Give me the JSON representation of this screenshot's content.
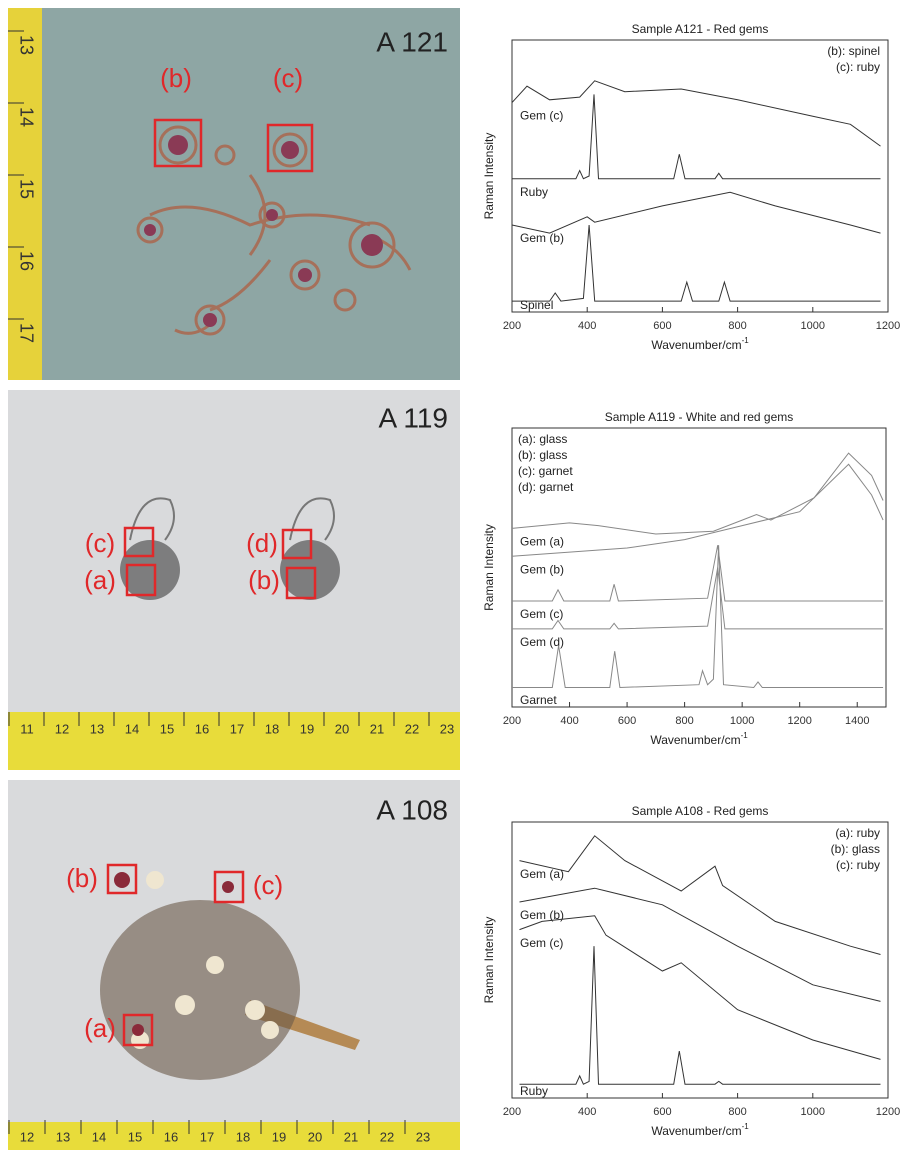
{
  "chart_data": [
    {
      "type": "line",
      "title": "Sample A121 - Red gems",
      "xlabel": "Wavenumber/cm",
      "xlabel_sup": "-1",
      "ylabel": "Raman Intensity",
      "xlim": [
        200,
        1200
      ],
      "xticks": [
        200,
        400,
        600,
        800,
        1000,
        1200
      ],
      "ylim": [
        0,
        100
      ],
      "legend": [
        "(b): spinel",
        "(c): ruby"
      ],
      "legend_loc": "upper right",
      "series": [
        {
          "name": "Gem (c)",
          "color": "#333333",
          "x": [
            200,
            240,
            300,
            380,
            420,
            500,
            650,
            800,
            1000,
            1100,
            1180
          ],
          "values": [
            77,
            83,
            78,
            79,
            85,
            81,
            82,
            78,
            72,
            69,
            61
          ]
        },
        {
          "name": "Ruby",
          "color": "#333333",
          "x": [
            200,
            370,
            380,
            390,
            405,
            418,
            430,
            630,
            645,
            660,
            740,
            750,
            760,
            1180
          ],
          "values": [
            49,
            49,
            52,
            49,
            50,
            80,
            49,
            49,
            58,
            49,
            49,
            51,
            49,
            49
          ]
        },
        {
          "name": "Gem (b)",
          "color": "#333333",
          "x": [
            200,
            300,
            400,
            420,
            600,
            780,
            900,
            1100,
            1180
          ],
          "values": [
            32,
            29,
            35,
            33,
            39,
            44,
            39,
            32,
            29
          ]
        },
        {
          "name": "Spinel",
          "color": "#333333",
          "x": [
            200,
            300,
            315,
            330,
            390,
            405,
            420,
            650,
            665,
            680,
            750,
            765,
            780,
            1180
          ],
          "values": [
            4,
            4,
            7,
            4,
            5,
            32,
            4,
            4,
            11,
            4,
            4,
            11,
            4,
            4
          ]
        }
      ]
    },
    {
      "type": "line",
      "title": "Sample A119 - White and red gems",
      "xlabel": "Wavenumber/cm",
      "xlabel_sup": "-1",
      "ylabel": "Raman Intensity",
      "xlim": [
        200,
        1500
      ],
      "xticks": [
        200,
        400,
        600,
        800,
        1000,
        1200,
        1400
      ],
      "ylim": [
        0,
        100
      ],
      "legend": [
        "(a): glass",
        "(b): glass",
        "(c): garnet",
        "(d): garnet"
      ],
      "legend_loc": "upper left",
      "series": [
        {
          "name": "Gem (a)",
          "color": "#888888",
          "x": [
            200,
            400,
            500,
            700,
            900,
            1000,
            1050,
            1100,
            1250,
            1370,
            1450,
            1490
          ],
          "values": [
            64,
            66,
            65,
            62,
            63,
            67,
            69,
            67,
            75,
            91,
            83,
            74
          ]
        },
        {
          "name": "Gem (b)",
          "color": "#888888",
          "x": [
            200,
            600,
            800,
            1000,
            1200,
            1370,
            1450,
            1490
          ],
          "values": [
            54,
            57,
            60,
            65,
            70,
            87,
            76,
            67
          ]
        },
        {
          "name": "Gem (c)",
          "color": "#888888",
          "x": [
            200,
            340,
            360,
            380,
            540,
            555,
            570,
            880,
            915,
            940,
            1490
          ],
          "values": [
            38,
            38,
            42,
            38,
            38,
            44,
            38,
            39,
            58,
            38,
            38
          ]
        },
        {
          "name": "Gem (d)",
          "color": "#888888",
          "x": [
            200,
            340,
            360,
            380,
            540,
            555,
            570,
            880,
            915,
            940,
            1490
          ],
          "values": [
            28,
            28,
            31,
            28,
            28,
            30,
            28,
            29,
            50,
            28,
            28
          ]
        },
        {
          "name": "Garnet",
          "color": "#888888",
          "x": [
            200,
            340,
            362,
            385,
            540,
            557,
            575,
            850,
            862,
            880,
            900,
            918,
            935,
            1040,
            1055,
            1070,
            1490
          ],
          "values": [
            7,
            7,
            22,
            7,
            7,
            20,
            7,
            8,
            13,
            8,
            10,
            58,
            8,
            7,
            9,
            7,
            7
          ]
        }
      ]
    },
    {
      "type": "line",
      "title": "Sample A108 - Red gems",
      "xlabel": "Wavenumber/cm",
      "xlabel_sup": "-1",
      "ylabel": "Raman Intensity",
      "xlim": [
        200,
        1200
      ],
      "xticks": [
        200,
        400,
        600,
        800,
        1000,
        1200
      ],
      "ylim": [
        0,
        100
      ],
      "legend": [
        "(a): ruby",
        "(b): glass",
        "(c): ruby"
      ],
      "legend_loc": "upper right",
      "series": [
        {
          "name": "Gem (a)",
          "color": "#333333",
          "x": [
            220,
            350,
            420,
            500,
            650,
            740,
            760,
            900,
            1100,
            1180
          ],
          "values": [
            86,
            82,
            95,
            86,
            75,
            84,
            77,
            64,
            55,
            52
          ]
        },
        {
          "name": "Gem (b)",
          "color": "#333333",
          "x": [
            220,
            420,
            600,
            800,
            1000,
            1180
          ],
          "values": [
            71,
            76,
            70,
            55,
            41,
            35
          ]
        },
        {
          "name": "Gem (c)",
          "color": "#333333",
          "x": [
            220,
            280,
            420,
            450,
            600,
            650,
            800,
            1000,
            1180
          ],
          "values": [
            61,
            64,
            66,
            59,
            46,
            49,
            32,
            21,
            14
          ]
        },
        {
          "name": "Ruby",
          "color": "#333333",
          "x": [
            220,
            370,
            380,
            390,
            405,
            418,
            430,
            630,
            645,
            660,
            740,
            750,
            760,
            1180
          ],
          "values": [
            5,
            5,
            8,
            5,
            6,
            55,
            5,
            5,
            17,
            5,
            5,
            6,
            5,
            5
          ]
        }
      ]
    }
  ],
  "photos": [
    {
      "label": "A 121",
      "markers": [
        "(b)",
        "(c)"
      ],
      "ruler": [
        "13",
        "14",
        "15",
        "16",
        "17"
      ]
    },
    {
      "label": "A 119",
      "markers": [
        "(c)",
        "(a)",
        "(d)",
        "(b)"
      ],
      "ruler": [
        "11",
        "12",
        "13",
        "14",
        "15",
        "16",
        "17",
        "18",
        "19",
        "20",
        "21",
        "22",
        "23"
      ]
    },
    {
      "label": "A 108",
      "markers": [
        "(b)",
        "(c)",
        "(a)"
      ],
      "ruler": [
        "12",
        "13",
        "14",
        "15",
        "16",
        "17",
        "18",
        "19",
        "20",
        "21",
        "22",
        "23"
      ]
    }
  ]
}
